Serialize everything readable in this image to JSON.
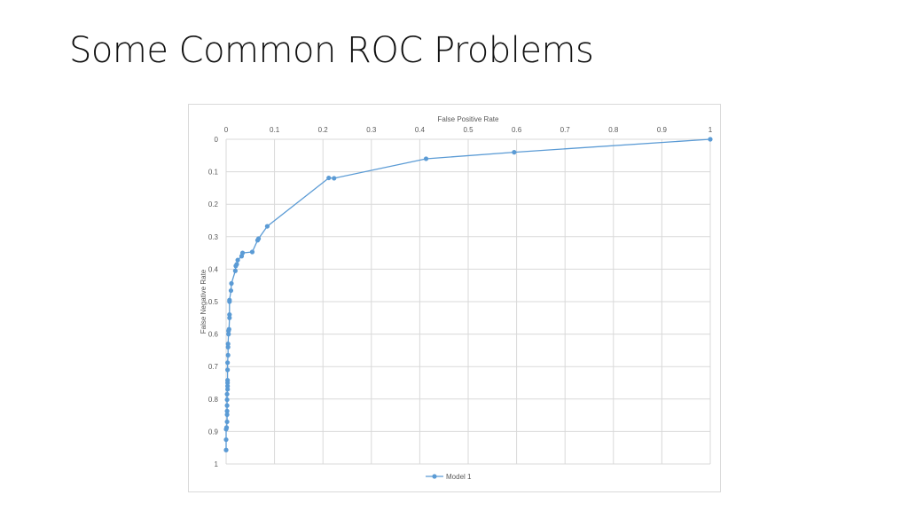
{
  "slide": {
    "title": "Some Common ROC Problems"
  },
  "chart_data": {
    "type": "line",
    "title": "",
    "xlabel": "False Positive Rate",
    "ylabel": "False Negative Rate",
    "xlim": [
      0,
      1
    ],
    "ylim": [
      0,
      1
    ],
    "x_axis_position": "top",
    "y_axis_reversed": true,
    "grid": true,
    "legend_position": "bottom",
    "x_ticks": [
      "0",
      "0.1",
      "0.2",
      "0.3",
      "0.4",
      "0.5",
      "0.6",
      "0.7",
      "0.8",
      "0.9",
      "1"
    ],
    "y_ticks": [
      "0",
      "0.1",
      "0.2",
      "0.3",
      "0.4",
      "0.5",
      "0.6",
      "0.7",
      "0.8",
      "0.9",
      "1"
    ],
    "series": [
      {
        "name": "Model 1",
        "color": "#5b9bd5",
        "points": [
          [
            1.0,
            0.0
          ],
          [
            0.595,
            0.04
          ],
          [
            0.413,
            0.06
          ],
          [
            0.223,
            0.12
          ],
          [
            0.212,
            0.119
          ],
          [
            0.085,
            0.268
          ],
          [
            0.067,
            0.306
          ],
          [
            0.065,
            0.311
          ],
          [
            0.054,
            0.347
          ],
          [
            0.034,
            0.35
          ],
          [
            0.032,
            0.36
          ],
          [
            0.024,
            0.372
          ],
          [
            0.022,
            0.385
          ],
          [
            0.02,
            0.39
          ],
          [
            0.019,
            0.405
          ],
          [
            0.011,
            0.444
          ],
          [
            0.01,
            0.466
          ],
          [
            0.007,
            0.495
          ],
          [
            0.007,
            0.5
          ],
          [
            0.007,
            0.54
          ],
          [
            0.007,
            0.55
          ],
          [
            0.006,
            0.585
          ],
          [
            0.005,
            0.59
          ],
          [
            0.005,
            0.6
          ],
          [
            0.004,
            0.63
          ],
          [
            0.004,
            0.64
          ],
          [
            0.004,
            0.665
          ],
          [
            0.003,
            0.688
          ],
          [
            0.003,
            0.71
          ],
          [
            0.003,
            0.742
          ],
          [
            0.003,
            0.75
          ],
          [
            0.003,
            0.76
          ],
          [
            0.003,
            0.77
          ],
          [
            0.002,
            0.785
          ],
          [
            0.002,
            0.802
          ],
          [
            0.002,
            0.82
          ],
          [
            0.002,
            0.837
          ],
          [
            0.002,
            0.848
          ],
          [
            0.002,
            0.87
          ],
          [
            0.001,
            0.888
          ],
          [
            0.0,
            0.893
          ],
          [
            0.0,
            0.925
          ],
          [
            0.0,
            0.957
          ]
        ]
      }
    ]
  },
  "legend": {
    "items": [
      {
        "label": "Model 1",
        "color": "#5b9bd5"
      }
    ]
  }
}
